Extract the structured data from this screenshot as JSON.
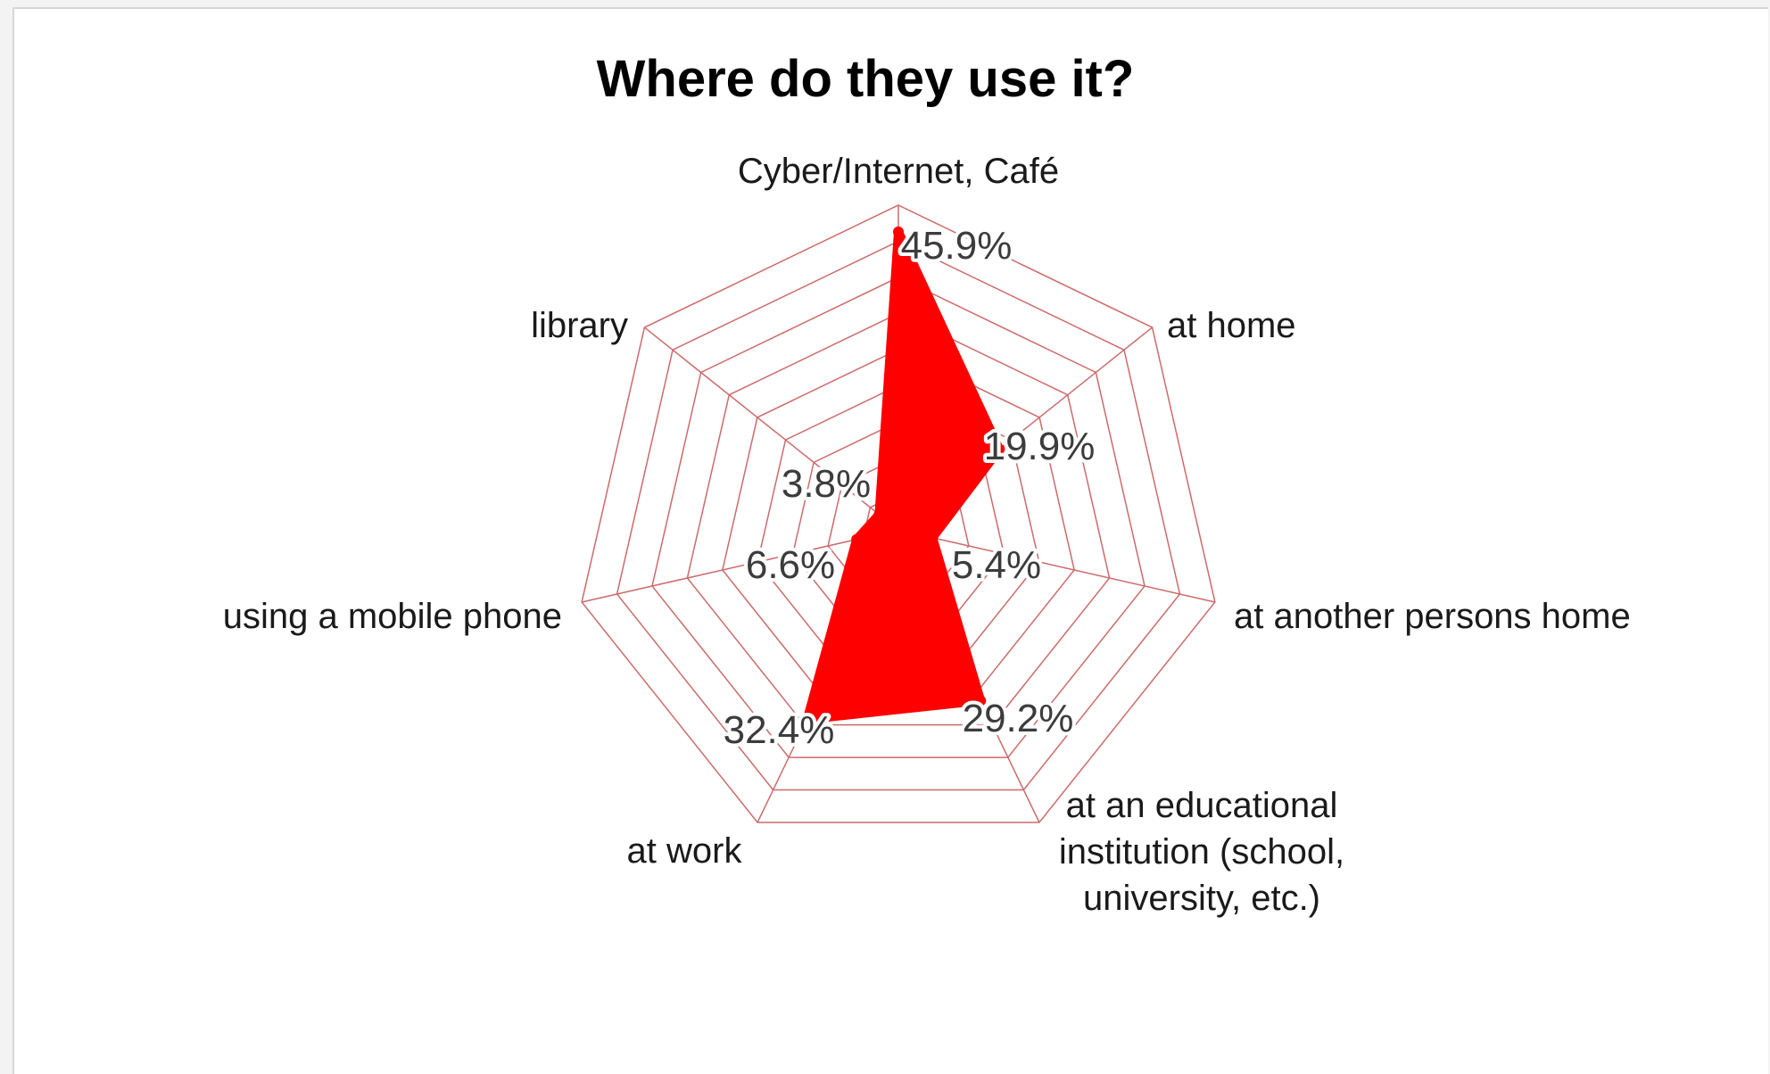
{
  "chart_data": {
    "type": "radar",
    "title": "Where do they use it?",
    "categories": [
      "Cyber/Internet, Café",
      "at home",
      "at another persons home",
      "at an educational institution (school, university, etc.)",
      "at work",
      "using a mobile phone",
      "library"
    ],
    "series": [
      {
        "values": [
          45.9,
          19.9,
          5.4,
          29.2,
          32.4,
          6.6,
          3.8
        ],
        "value_labels": [
          "45.9%",
          "19.9%",
          "5.4%",
          "29.2%",
          "32.4%",
          "6.6%",
          "3.8%"
        ],
        "color": "#ff0000"
      }
    ],
    "rlim": [
      0,
      50
    ],
    "grid_levels": 9,
    "grid_color": "#cc6b6b",
    "legend": "none"
  }
}
